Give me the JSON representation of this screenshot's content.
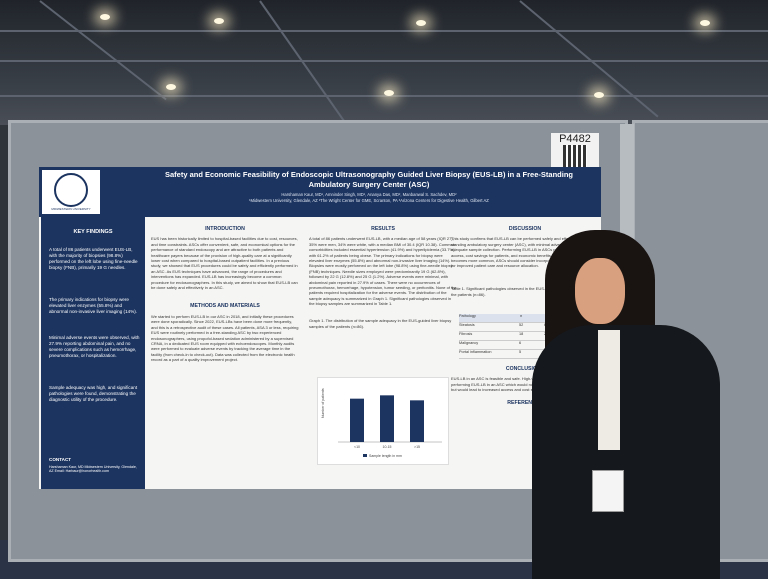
{
  "booth": {
    "number": "P4482"
  },
  "poster": {
    "title": "Safety and Economic Feasibility of Endoscopic Ultrasonography Guided Liver Biopsy (EUS-LB) in a Free-Standing Ambulatory Surgery Center (ASC)",
    "authors": "Harshaman Kaur, MD¹, Amninder Singh, MD¹, Ananya Das, MD², Manbanwal S. Sachdev, MD²",
    "affiliations": "¹Midwestern University, Glendale, AZ ²The Wright Center for GME, Scranton, PA ³Arizona Centers for Digestive Health, Gilbert AZ",
    "logo_text": "MIDWESTERN UNIVERSITY",
    "key_findings": {
      "heading": "KEY FINDINGS",
      "bullets": [
        "A total of 86 patients underwent EUS-LB, with the majority of biopsies (98.8%) performed on the left lobe using fine-needle biopsy (FNB), primarily 19 G needles.",
        "The primary indications for biopsy were elevated liver enzymes (55.8%) and abnormal non-invasive liver imaging (14%).",
        "Minimal adverse events were observed, with 27.9% reporting abdominal pain, and no severe complications such as hemorrhage, pneumothorax, or hospitalization.",
        "Sample adequacy was high, and significant pathologies were found, demonstrating the diagnostic utility of the procedure."
      ],
      "contact_heading": "CONTACT",
      "contact_text": "Harshaman Kaur, MD Midwestern University, Glendale, AZ Email: Harbaur@honorhealth.com"
    },
    "introduction": {
      "heading": "INTRODUCTION",
      "text": "EUS has been historically limited to hospital-based facilities due to cost, resources, and time constraints. ASCs offer convenient, safe, and economical options for the performance of standard endoscopy and are attractive to both patients and healthcare payers because of the provision of high-quality care at a significantly lower cost when compared to hospital-based outpatient facilities. In a previous study, we showed that EUS procedures could be safely and efficiently performed in an ASC. As EUS techniques have advanced, the range of procedures and interventions has expanded. EUS-LB has increasingly become a common procedure for endosonographers. In this study, we aimed to show that EUS-LB can be done safely and effectively in an ASC."
    },
    "methods": {
      "heading": "METHODS AND MATERIALS",
      "text": "We started to perform EUS-LB in our ASC in 2018, and initially these procedures were done sporadically. Since 2022, EUS-LBs have been done more frequently, and this is a retrospective audit of these cases. All patients, ASA 3 or less, requiring EUS were routinely performed in a free-standing ASC by two experienced endosonographers, using propofol-based sedation administered by a supervised CRNA, in a dedicated EUS room equipped with echoendoscopes. Monthly audits were performed to evaluate adverse events by tracking the average time in the facility (from check-in to check-out). Data was collected from the electronic health record as a part of a quality improvement project."
    },
    "results": {
      "heading": "RESULTS",
      "text": "A total of 86 patients underwent EUS-LB, with a median age of 58 years (IQR 27), 35% were men, 34% were white, with a median BMI of 30.4 (IQR 10.38). Common comorbidities included essential hypertension (41.9%) and hyperlipidemia (33.7%), with 61.2% of patients being obese. The primary indications for biopsy were elevated liver enzymes (55.8%) and abnormal non-invasive liver imaging (14%). Biopsies were mostly performed on the left lobe (98.8%) using fine-needle biopsy (FNB) techniques. Needle sizes employed were predominantly 19 G (62.8%), followed by 22 G (12.8%) and 25 G (1.2%). Adverse events were minimal, with abdominal pain reported in 27.9% of cases. There were no occurrences of pneumothorax, hemorrhage, hypotension, tumor seeding, or peritonitis. None of the patients required hospitalization for the adverse events. The distribution of the sample adequacy is summarized in Graph 1. Significant pathologies observed in the biopsy samples are summarized in Table 1.",
      "graph_caption": "Graph 1. The distribution of the sample adequacy in the EUS-guided liver biopsy samples of the patients (n=86).",
      "chart_legend": "Sample length in mm"
    },
    "discussion": {
      "heading": "DISCUSSION",
      "text": "This study confirms that EUS-LB can be performed safely and effectively in a free-standing ambulatory surgery center (ASC), with minimal adverse events and adequate sample collection. Performing EUS-LB in ASCs provides increased access, cost savings for patients, and economic benefits for the ASC. As EUS-LB becomes more common, ASCs should consider incorporating it into their practice for improved patient care and resource allocation.",
      "table_caption": "Table 1. Significant pathologies observed in the EUS-guided liver biopsy samples of the patients (n=86).",
      "table_header": [
        "Pathology",
        "n",
        "%"
      ],
      "table_rows": [
        [
          "Steatosis",
          "52",
          "60.5"
        ],
        [
          "Fibrosis",
          "18",
          "20.9"
        ],
        [
          "Malignancy",
          "6",
          ""
        ],
        [
          "Portal inflammation",
          "5",
          ""
        ]
      ],
      "conclusions_heading": "CONCLUSIONS",
      "conclusions_text": "EUS-LB in an ASC is feasible and safe. High-volume EUS practice should consider performing EUS-LB in an ASC which would not only add to the revenue of the ASC but would lead to increased access and cost savings for patients.",
      "references_heading": "REFERENCES"
    }
  },
  "chart_data": {
    "type": "bar",
    "categories": [
      "<10",
      "10-15",
      ">15"
    ],
    "values": [
      26,
      28,
      25
    ],
    "title": "",
    "xlabel": "",
    "ylabel": "Number of patients",
    "ylim": [
      0,
      30
    ],
    "legend": [
      "Sample length in mm"
    ]
  }
}
